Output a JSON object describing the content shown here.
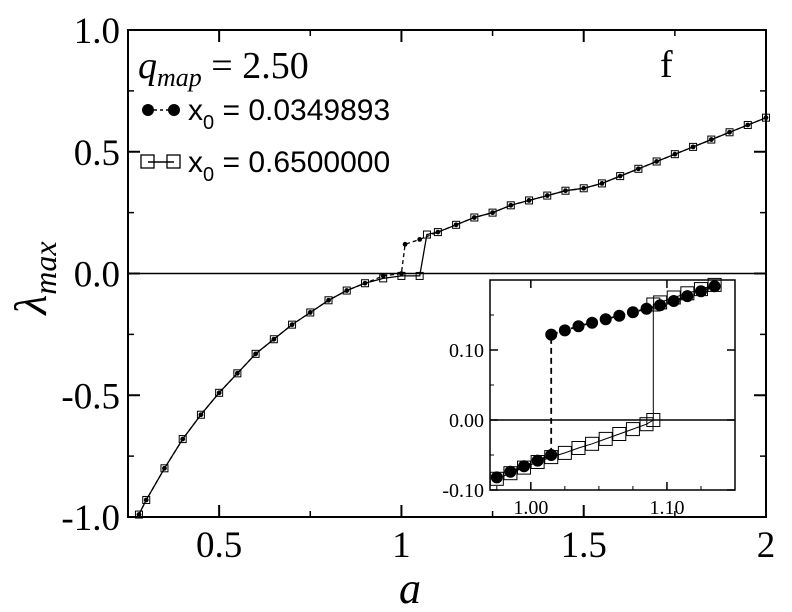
{
  "chart_data": [
    {
      "type": "line",
      "panel_label": "f",
      "param_label": {
        "symbol": "q",
        "subscript": "map",
        "rest": " = 2.50"
      },
      "xlabel": "a",
      "ylabel": {
        "symbol": "λ",
        "subscript": "max"
      },
      "xlim": [
        0.25,
        2.0
      ],
      "ylim": [
        -1.0,
        1.0
      ],
      "xticks": [
        0.5,
        1.0,
        1.5,
        2.0
      ],
      "xtick_labels": [
        "0.5",
        "1",
        "1.5",
        "2"
      ],
      "yticks": [
        -1.0,
        -0.5,
        0.0,
        0.5,
        1.0
      ],
      "ytick_labels": [
        "-1.0",
        "-0.5",
        "0.0",
        "0.5",
        "1.0"
      ],
      "reference_line_y": 0.0,
      "legend_position": "top-left",
      "series": [
        {
          "name": "x0 = 0.0349893",
          "legend_main": "x",
          "legend_sub": "0",
          "legend_rest": " = 0.0349893",
          "marker": "filled-circle",
          "line": "dashed",
          "x": [
            0.28,
            0.3,
            0.35,
            0.4,
            0.45,
            0.5,
            0.55,
            0.6,
            0.65,
            0.7,
            0.75,
            0.8,
            0.85,
            0.9,
            0.95,
            1.0,
            1.01,
            1.05,
            1.1,
            1.15,
            1.2,
            1.25,
            1.3,
            1.35,
            1.4,
            1.45,
            1.5,
            1.55,
            1.6,
            1.65,
            1.7,
            1.75,
            1.8,
            1.85,
            1.9,
            1.95,
            2.0
          ],
          "y": [
            -0.99,
            -0.93,
            -0.8,
            -0.68,
            -0.58,
            -0.49,
            -0.41,
            -0.33,
            -0.27,
            -0.21,
            -0.16,
            -0.11,
            -0.07,
            -0.04,
            -0.01,
            0.0,
            0.12,
            0.14,
            0.17,
            0.2,
            0.23,
            0.25,
            0.28,
            0.3,
            0.32,
            0.34,
            0.35,
            0.37,
            0.4,
            0.43,
            0.46,
            0.49,
            0.52,
            0.55,
            0.58,
            0.61,
            0.64
          ]
        },
        {
          "name": "x0 = 0.6500000",
          "legend_main": "x",
          "legend_sub": "0",
          "legend_rest": " = 0.6500000",
          "marker": "open-square",
          "line": "solid",
          "x": [
            0.28,
            0.3,
            0.35,
            0.4,
            0.45,
            0.5,
            0.55,
            0.6,
            0.65,
            0.7,
            0.75,
            0.8,
            0.85,
            0.9,
            0.95,
            1.0,
            1.05,
            1.07,
            1.1,
            1.15,
            1.2,
            1.25,
            1.3,
            1.35,
            1.4,
            1.45,
            1.5,
            1.55,
            1.6,
            1.65,
            1.7,
            1.75,
            1.8,
            1.85,
            1.9,
            1.95,
            2.0
          ],
          "y": [
            -0.99,
            -0.93,
            -0.8,
            -0.68,
            -0.58,
            -0.49,
            -0.41,
            -0.33,
            -0.27,
            -0.21,
            -0.16,
            -0.11,
            -0.07,
            -0.04,
            -0.02,
            -0.01,
            -0.01,
            0.16,
            0.17,
            0.2,
            0.23,
            0.25,
            0.28,
            0.3,
            0.32,
            0.34,
            0.35,
            0.37,
            0.4,
            0.43,
            0.46,
            0.49,
            0.52,
            0.55,
            0.58,
            0.61,
            0.64
          ]
        }
      ]
    },
    {
      "type": "line",
      "inset": true,
      "xlim": [
        0.97,
        1.15
      ],
      "ylim": [
        -0.1,
        0.2
      ],
      "xticks": [
        1.0,
        1.1
      ],
      "xtick_labels": [
        "1.00",
        "1.10"
      ],
      "yticks": [
        -0.1,
        0.0,
        0.1
      ],
      "ytick_labels": [
        "-0.10",
        "0.00",
        "0.10"
      ],
      "reference_line_y": 0.0,
      "series": [
        {
          "name": "x0 = 0.0349893",
          "marker": "filled-circle",
          "line": "dashed",
          "x": [
            0.975,
            0.985,
            0.995,
            1.005,
            1.015,
            1.015,
            1.025,
            1.035,
            1.045,
            1.055,
            1.065,
            1.075,
            1.085,
            1.095,
            1.105,
            1.115,
            1.125,
            1.135
          ],
          "y": [
            -0.082,
            -0.074,
            -0.066,
            -0.058,
            -0.05,
            0.122,
            0.128,
            0.134,
            0.139,
            0.144,
            0.149,
            0.154,
            0.159,
            0.164,
            0.17,
            0.177,
            0.184,
            0.191
          ]
        },
        {
          "name": "x0 = 0.6500000",
          "marker": "open-square",
          "line": "solid",
          "x": [
            0.975,
            0.985,
            0.995,
            1.005,
            1.015,
            1.025,
            1.035,
            1.045,
            1.055,
            1.065,
            1.075,
            1.085,
            1.09,
            1.09,
            1.095,
            1.105,
            1.115,
            1.125,
            1.135
          ],
          "y": [
            -0.084,
            -0.076,
            -0.068,
            -0.06,
            -0.053,
            -0.047,
            -0.04,
            -0.034,
            -0.027,
            -0.02,
            -0.013,
            -0.006,
            0.0,
            0.165,
            0.168,
            0.175,
            0.181,
            0.187,
            0.193
          ]
        }
      ]
    }
  ]
}
